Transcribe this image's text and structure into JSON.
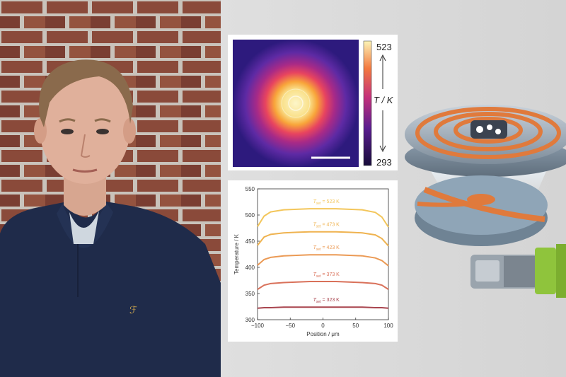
{
  "colorbar": {
    "max": "523",
    "min": "293",
    "label": "T / K"
  },
  "chart_data": {
    "type": "line",
    "xlabel": "Position / μm",
    "ylabel": "Temperature / K",
    "xlim": [
      -100,
      100
    ],
    "ylim": [
      300,
      550
    ],
    "xticks": [
      "−100",
      "−50",
      "0",
      "50",
      "100"
    ],
    "yticks": [
      "300",
      "350",
      "400",
      "450",
      "500",
      "550"
    ],
    "x": [
      -100,
      -90,
      -80,
      -60,
      -40,
      -20,
      0,
      20,
      40,
      60,
      80,
      90,
      100
    ],
    "series": [
      {
        "name": "T_set = 523 K",
        "label": "523 K",
        "color": "#f3c65b",
        "values": [
          478,
          498,
          506,
          510,
          511,
          512,
          512,
          512,
          511,
          510,
          505,
          496,
          477
        ]
      },
      {
        "name": "T_set = 473 K",
        "label": "473 K",
        "color": "#efb350",
        "values": [
          442,
          458,
          463,
          466,
          467,
          468,
          468,
          468,
          467,
          466,
          462,
          455,
          441
        ]
      },
      {
        "name": "T_set = 423 K",
        "label": "423 K",
        "color": "#eb9a55",
        "values": [
          404,
          415,
          419,
          422,
          423,
          424,
          424,
          424,
          423,
          422,
          418,
          413,
          403
        ]
      },
      {
        "name": "T_set = 373 K",
        "label": "373 K",
        "color": "#d9715a",
        "values": [
          358,
          366,
          369,
          371,
          372,
          373,
          373,
          373,
          372,
          371,
          369,
          366,
          358
        ]
      },
      {
        "name": "T_set = 323 K",
        "label": "323 K",
        "color": "#a9454f",
        "values": [
          322,
          323,
          323,
          324,
          324,
          324,
          324,
          324,
          324,
          324,
          323,
          323,
          322
        ]
      }
    ]
  }
}
